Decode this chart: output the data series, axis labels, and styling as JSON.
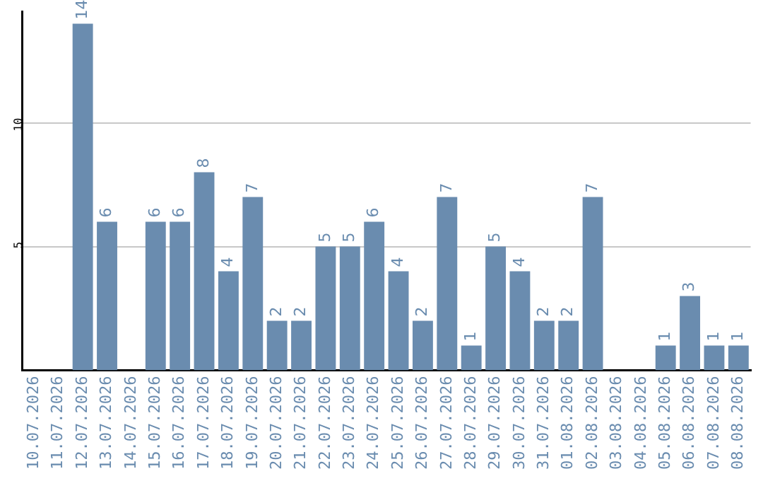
{
  "chart_data": {
    "type": "bar",
    "categories": [
      "10.07.2026",
      "11.07.2026",
      "12.07.2026",
      "13.07.2026",
      "14.07.2026",
      "15.07.2026",
      "16.07.2026",
      "17.07.2026",
      "18.07.2026",
      "19.07.2026",
      "20.07.2026",
      "21.07.2026",
      "22.07.2026",
      "23.07.2026",
      "24.07.2026",
      "25.07.2026",
      "26.07.2026",
      "27.07.2026",
      "28.07.2026",
      "29.07.2026",
      "30.07.2026",
      "31.07.2026",
      "01.08.2026",
      "02.08.2026",
      "03.08.2026",
      "04.08.2026",
      "05.08.2026",
      "06.08.2026",
      "07.08.2026",
      "08.08.2026"
    ],
    "values": [
      null,
      null,
      14,
      6,
      null,
      6,
      6,
      8,
      4,
      7,
      2,
      2,
      5,
      5,
      6,
      4,
      2,
      7,
      1,
      5,
      4,
      2,
      2,
      7,
      null,
      null,
      1,
      3,
      1,
      1
    ],
    "color": "#6a8caf",
    "ylim": [
      0,
      14.5
    ],
    "yticks": [
      5,
      10
    ],
    "grid": "y",
    "data_labels": true
  }
}
